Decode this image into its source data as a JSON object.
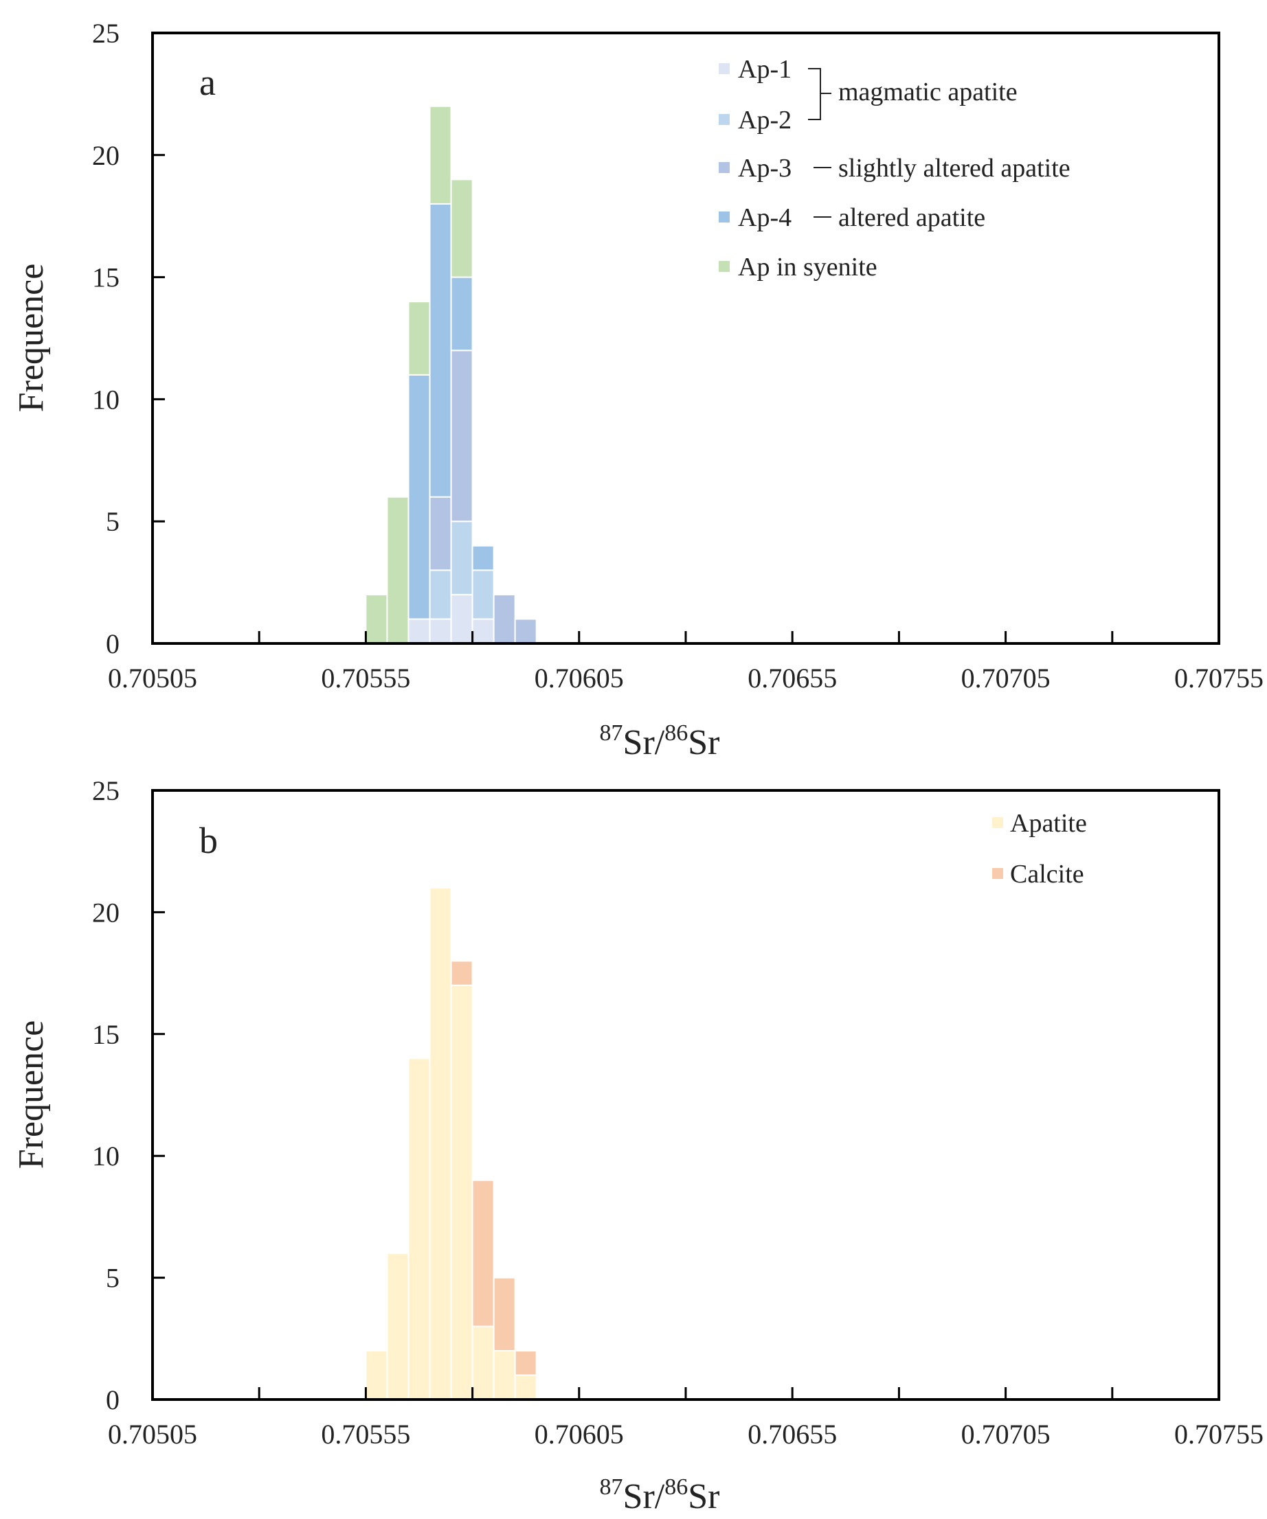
{
  "chart_data": [
    {
      "type": "bar",
      "stacked": true,
      "panel_label": "a",
      "xlabel": {
        "sup1": "87",
        "base1": "Sr/",
        "sup2": "86",
        "base2": "Sr"
      },
      "ylabel": "Frequence",
      "ylim": [
        0,
        25
      ],
      "yticks": [
        "0",
        "5",
        "10",
        "15",
        "20",
        "25"
      ],
      "xlim": [
        0.70505,
        0.70755
      ],
      "xtick_values": [
        0.70505,
        0.70555,
        0.70605,
        0.70655,
        0.70705,
        0.70755
      ],
      "xtick_labels": [
        "0.70505",
        "0.70555",
        "0.70605",
        "0.70655",
        "0.70705",
        "0.70755"
      ],
      "bin_width": 5e-05,
      "bin_starts": [
        0.70555,
        0.7056,
        0.70565,
        0.7057,
        0.70575,
        0.7058,
        0.70585,
        0.7059,
        0.70595,
        0.706
      ],
      "series": [
        {
          "name": "Ap-1",
          "color": "#dde4f4",
          "values": [
            0,
            0,
            1,
            1,
            2,
            1,
            0,
            0,
            0,
            0
          ]
        },
        {
          "name": "Ap-2",
          "color": "#bcd6ee",
          "values": [
            0,
            0,
            0,
            2,
            3,
            2,
            0,
            0,
            0,
            0
          ]
        },
        {
          "name": "Ap-3",
          "color": "#b2c3e3",
          "values": [
            0,
            0,
            0,
            3,
            7,
            0,
            2,
            1,
            0,
            0
          ]
        },
        {
          "name": "Ap-4",
          "color": "#9dc3e6",
          "values": [
            0,
            0,
            10,
            12,
            3,
            1,
            0,
            0,
            0,
            0
          ]
        },
        {
          "name": "Ap in syenite",
          "color": "#c5e0b4",
          "values": [
            2,
            6,
            3,
            4,
            4,
            0,
            0,
            0,
            0,
            0
          ]
        }
      ],
      "legend": {
        "entries": [
          "Ap-1",
          "Ap-2",
          "Ap-3",
          "Ap-4",
          "Ap in syenite"
        ],
        "group_label": "magmatic apatite",
        "ap3_desc": "slightly altered apatite",
        "ap4_desc": "altered apatite",
        "placement": "top-right"
      }
    },
    {
      "type": "bar",
      "stacked": true,
      "panel_label": "b",
      "xlabel": {
        "sup1": "87",
        "base1": "Sr/",
        "sup2": "86",
        "base2": "Sr"
      },
      "ylabel": "Frequence",
      "ylim": [
        0,
        25
      ],
      "yticks": [
        "0",
        "5",
        "10",
        "15",
        "20",
        "25"
      ],
      "xlim": [
        0.70505,
        0.70755
      ],
      "xtick_values": [
        0.70505,
        0.70555,
        0.70605,
        0.70655,
        0.70705,
        0.70755
      ],
      "xtick_labels": [
        "0.70505",
        "0.70555",
        "0.70605",
        "0.70655",
        "0.70705",
        "0.70755"
      ],
      "bin_width": 5e-05,
      "bin_starts": [
        0.70555,
        0.7056,
        0.70565,
        0.7057,
        0.70575,
        0.7058,
        0.70585,
        0.7059,
        0.70595,
        0.706
      ],
      "series": [
        {
          "name": "Apatite",
          "color": "#fff2cc",
          "values": [
            2,
            6,
            14,
            21,
            17,
            3,
            2,
            1,
            0,
            0
          ]
        },
        {
          "name": "Calcite",
          "color": "#f8cbad",
          "values": [
            0,
            0,
            0,
            0,
            1,
            6,
            3,
            1,
            0,
            0
          ]
        }
      ],
      "legend": {
        "entries": [
          "Apatite",
          "Calcite"
        ],
        "placement": "top-right"
      }
    }
  ]
}
